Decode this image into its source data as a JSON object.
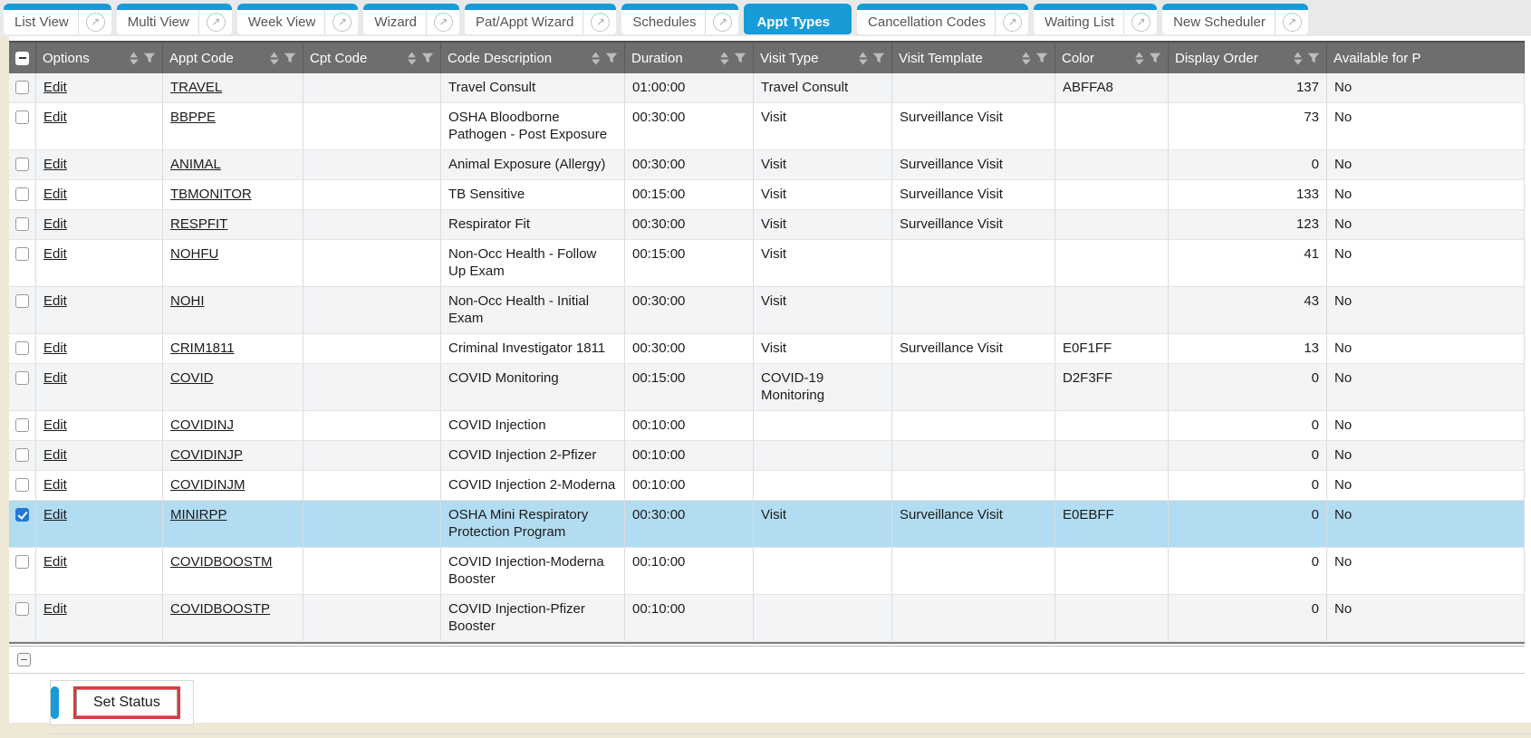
{
  "theme": {
    "accent_blue": "#189bd7",
    "header_gray": "#6e6e6e",
    "row_alt": "#f2f4f6",
    "selected_row": "#b2dcf2",
    "checkbox_checked": "#2478d4",
    "annotation_red": "#d93b3b",
    "page_edge_beige": "#efe8d7"
  },
  "tabs": {
    "items": [
      {
        "label": "List View",
        "external": true,
        "active": false
      },
      {
        "label": "Multi View",
        "external": true,
        "active": false
      },
      {
        "label": "Week View",
        "external": true,
        "active": false
      },
      {
        "label": "Wizard",
        "external": true,
        "active": false
      },
      {
        "label": "Pat/Appt Wizard",
        "external": true,
        "active": false
      },
      {
        "label": "Schedules",
        "external": true,
        "active": false
      },
      {
        "label": "Appt Types",
        "external": false,
        "active": true
      },
      {
        "label": "Cancellation Codes",
        "external": true,
        "active": false
      },
      {
        "label": "Waiting List",
        "external": true,
        "active": false
      },
      {
        "label": "New Scheduler",
        "external": true,
        "active": false
      }
    ]
  },
  "table": {
    "edit_label": "Edit",
    "columns": [
      {
        "key": "select",
        "label": "",
        "type": "select"
      },
      {
        "key": "options",
        "label": "Options",
        "sortable": true,
        "filterable": true
      },
      {
        "key": "appt_code",
        "label": "Appt Code",
        "sortable": true,
        "filterable": true
      },
      {
        "key": "cpt_code",
        "label": "Cpt Code",
        "sortable": true,
        "filterable": true
      },
      {
        "key": "description",
        "label": "Code Description",
        "sortable": true,
        "filterable": true
      },
      {
        "key": "duration",
        "label": "Duration",
        "sortable": true,
        "filterable": true
      },
      {
        "key": "visit_type",
        "label": "Visit Type",
        "sortable": true,
        "filterable": true
      },
      {
        "key": "visit_template",
        "label": "Visit Template",
        "sortable": true,
        "filterable": true
      },
      {
        "key": "color",
        "label": "Color",
        "sortable": true,
        "filterable": true
      },
      {
        "key": "display_order",
        "label": "Display Order",
        "sortable": true,
        "filterable": true,
        "align": "right"
      },
      {
        "key": "available",
        "label": "Available for P",
        "clipped": true
      }
    ],
    "rows": [
      {
        "appt_code": "TRAVEL",
        "cpt_code": "",
        "description": "Travel Consult",
        "duration": "01:00:00",
        "visit_type": "Travel Consult",
        "visit_template": "",
        "color": "ABFFA8",
        "display_order": "137",
        "available": "No",
        "selected": false
      },
      {
        "appt_code": "BBPPE",
        "cpt_code": "",
        "description": "OSHA Bloodborne Pathogen - Post Exposure",
        "duration": "00:30:00",
        "visit_type": "Visit",
        "visit_template": "Surveillance Visit",
        "color": "",
        "display_order": "73",
        "available": "No",
        "selected": false
      },
      {
        "appt_code": "ANIMAL",
        "cpt_code": "",
        "description": "Animal Exposure (Allergy)",
        "duration": "00:30:00",
        "visit_type": "Visit",
        "visit_template": "Surveillance Visit",
        "color": "",
        "display_order": "0",
        "available": "No",
        "selected": false
      },
      {
        "appt_code": "TBMONITOR",
        "cpt_code": "",
        "description": "TB Sensitive",
        "duration": "00:15:00",
        "visit_type": "Visit",
        "visit_template": "Surveillance Visit",
        "color": "",
        "display_order": "133",
        "available": "No",
        "selected": false
      },
      {
        "appt_code": "RESPFIT",
        "cpt_code": "",
        "description": "Respirator Fit",
        "duration": "00:30:00",
        "visit_type": "Visit",
        "visit_template": "Surveillance Visit",
        "color": "",
        "display_order": "123",
        "available": "No",
        "selected": false
      },
      {
        "appt_code": "NOHFU",
        "cpt_code": "",
        "description": "Non-Occ Health - Follow Up Exam",
        "duration": "00:15:00",
        "visit_type": "Visit",
        "visit_template": "",
        "color": "",
        "display_order": "41",
        "available": "No",
        "selected": false
      },
      {
        "appt_code": "NOHI",
        "cpt_code": "",
        "description": "Non-Occ Health - Initial Exam",
        "duration": "00:30:00",
        "visit_type": "Visit",
        "visit_template": "",
        "color": "",
        "display_order": "43",
        "available": "No",
        "selected": false
      },
      {
        "appt_code": "CRIM1811",
        "cpt_code": "",
        "description": "Criminal Investigator 1811",
        "duration": "00:30:00",
        "visit_type": "Visit",
        "visit_template": "Surveillance Visit",
        "color": "E0F1FF",
        "display_order": "13",
        "available": "No",
        "selected": false
      },
      {
        "appt_code": "COVID",
        "cpt_code": "",
        "description": "COVID Monitoring",
        "duration": "00:15:00",
        "visit_type": "COVID-19 Monitoring",
        "visit_template": "",
        "color": "D2F3FF",
        "display_order": "0",
        "available": "No",
        "selected": false
      },
      {
        "appt_code": "COVIDINJ",
        "cpt_code": "",
        "description": "COVID Injection",
        "duration": "00:10:00",
        "visit_type": "",
        "visit_template": "",
        "color": "",
        "display_order": "0",
        "available": "No",
        "selected": false
      },
      {
        "appt_code": "COVIDINJP",
        "cpt_code": "",
        "description": "COVID Injection 2-Pfizer",
        "duration": "00:10:00",
        "visit_type": "",
        "visit_template": "",
        "color": "",
        "display_order": "0",
        "available": "No",
        "selected": false
      },
      {
        "appt_code": "COVIDINJM",
        "cpt_code": "",
        "description": "COVID Injection 2-Moderna",
        "duration": "00:10:00",
        "visit_type": "",
        "visit_template": "",
        "color": "",
        "display_order": "0",
        "available": "No",
        "selected": false
      },
      {
        "appt_code": "MINIRPP",
        "cpt_code": "",
        "description": "OSHA Mini Respiratory Protection Program",
        "duration": "00:30:00",
        "visit_type": "Visit",
        "visit_template": "Surveillance Visit",
        "color": "E0EBFF",
        "display_order": "0",
        "available": "No",
        "selected": true
      },
      {
        "appt_code": "COVIDBOOSTM",
        "cpt_code": "",
        "description": "COVID Injection-Moderna Booster",
        "duration": "00:10:00",
        "visit_type": "",
        "visit_template": "",
        "color": "",
        "display_order": "0",
        "available": "No",
        "selected": false
      },
      {
        "appt_code": "COVIDBOOSTP",
        "cpt_code": "",
        "description": "COVID Injection-Pfizer Booster",
        "duration": "00:10:00",
        "visit_type": "",
        "visit_template": "",
        "color": "",
        "display_order": "0",
        "available": "No",
        "selected": false
      }
    ]
  },
  "actions": {
    "set_status_label": "Set Status"
  }
}
